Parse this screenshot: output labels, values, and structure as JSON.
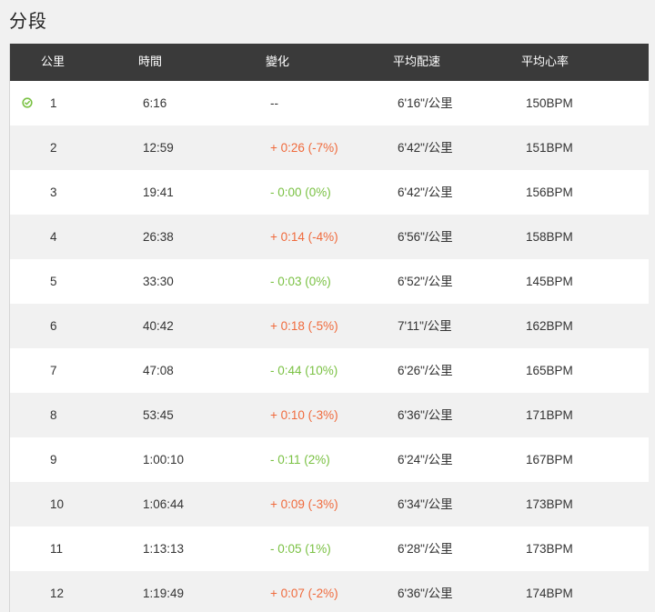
{
  "title": "分段",
  "headers": {
    "km": "公里",
    "time": "時間",
    "change": "變化",
    "pace": "平均配速",
    "hr": "平均心率"
  },
  "colors": {
    "header_bg": "#3a3a3a",
    "positive_change": "#f06a3c",
    "negative_change": "#7ac143",
    "check_icon": "#7ac143"
  },
  "rows": [
    {
      "km": "1",
      "time": "6:16",
      "change": "--",
      "change_type": "neutral",
      "pace": "6'16\"/公里",
      "hr": "150BPM",
      "icon": "check-circle-icon"
    },
    {
      "km": "2",
      "time": "12:59",
      "change": "+ 0:26 (-7%)",
      "change_type": "pos",
      "pace": "6'42\"/公里",
      "hr": "151BPM"
    },
    {
      "km": "3",
      "time": "19:41",
      "change": "- 0:00 (0%)",
      "change_type": "neg",
      "pace": "6'42\"/公里",
      "hr": "156BPM"
    },
    {
      "km": "4",
      "time": "26:38",
      "change": "+ 0:14 (-4%)",
      "change_type": "pos",
      "pace": "6'56\"/公里",
      "hr": "158BPM"
    },
    {
      "km": "5",
      "time": "33:30",
      "change": "- 0:03 (0%)",
      "change_type": "neg",
      "pace": "6'52\"/公里",
      "hr": "145BPM"
    },
    {
      "km": "6",
      "time": "40:42",
      "change": "+ 0:18 (-5%)",
      "change_type": "pos",
      "pace": "7'11\"/公里",
      "hr": "162BPM"
    },
    {
      "km": "7",
      "time": "47:08",
      "change": "- 0:44 (10%)",
      "change_type": "neg",
      "pace": "6'26\"/公里",
      "hr": "165BPM"
    },
    {
      "km": "8",
      "time": "53:45",
      "change": "+ 0:10 (-3%)",
      "change_type": "pos",
      "pace": "6'36\"/公里",
      "hr": "171BPM"
    },
    {
      "km": "9",
      "time": "1:00:10",
      "change": "- 0:11 (2%)",
      "change_type": "neg",
      "pace": "6'24\"/公里",
      "hr": "167BPM"
    },
    {
      "km": "10",
      "time": "1:06:44",
      "change": "+ 0:09 (-3%)",
      "change_type": "pos",
      "pace": "6'34\"/公里",
      "hr": "173BPM"
    },
    {
      "km": "11",
      "time": "1:13:13",
      "change": "- 0:05 (1%)",
      "change_type": "neg",
      "pace": "6'28\"/公里",
      "hr": "173BPM"
    },
    {
      "km": "12",
      "time": "1:19:49",
      "change": "+ 0:07 (-2%)",
      "change_type": "pos",
      "pace": "6'36\"/公里",
      "hr": "174BPM"
    }
  ]
}
